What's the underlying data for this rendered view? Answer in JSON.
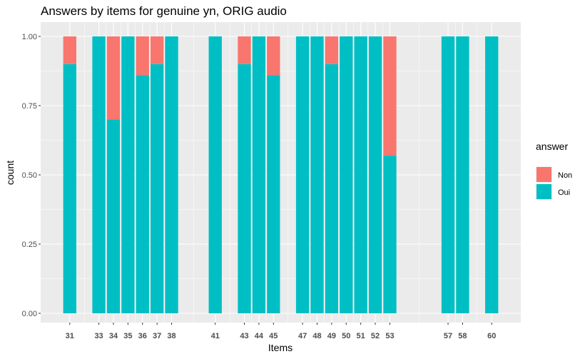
{
  "chart_data": {
    "type": "bar",
    "stacked": true,
    "title": "Answers by items for genuine yn, ORIG audio",
    "xlabel": "Items",
    "ylabel": "count",
    "ylim": [
      0,
      1
    ],
    "y_ticks": [
      0,
      0.25,
      0.5,
      0.75,
      1
    ],
    "y_tick_labels": [
      "0.00",
      "0.25",
      "0.50",
      "0.75",
      "1.00"
    ],
    "x_range": [
      29,
      62
    ],
    "categories": [
      "31",
      "33",
      "34",
      "35",
      "36",
      "37",
      "38",
      "41",
      "43",
      "44",
      "45",
      "47",
      "48",
      "49",
      "50",
      "51",
      "52",
      "53",
      "57",
      "58",
      "60"
    ],
    "x": [
      31,
      33,
      34,
      35,
      36,
      37,
      38,
      41,
      43,
      44,
      45,
      47,
      48,
      49,
      50,
      51,
      52,
      53,
      57,
      58,
      60
    ],
    "series": [
      {
        "name": "Oui",
        "color": "#00BFC4",
        "values": [
          0.9,
          1,
          0.7,
          1,
          0.86,
          0.9,
          1,
          1,
          0.9,
          1,
          0.86,
          1,
          1,
          0.9,
          1,
          1,
          1,
          0.57,
          1,
          1,
          1
        ]
      },
      {
        "name": "Non",
        "color": "#F8766D",
        "values": [
          0.1,
          0,
          0.3,
          0,
          0.14,
          0.1,
          0,
          0,
          0.1,
          0,
          0.14,
          0,
          0,
          0.1,
          0,
          0,
          0,
          0.43,
          0,
          0,
          0
        ]
      }
    ],
    "legend": {
      "title": "answer",
      "placement": "right",
      "entries": [
        {
          "label": "Non",
          "color": "#F8766D"
        },
        {
          "label": "Oui",
          "color": "#00BFC4"
        }
      ]
    },
    "grid": true,
    "panel_background": "#EBEBEB"
  }
}
